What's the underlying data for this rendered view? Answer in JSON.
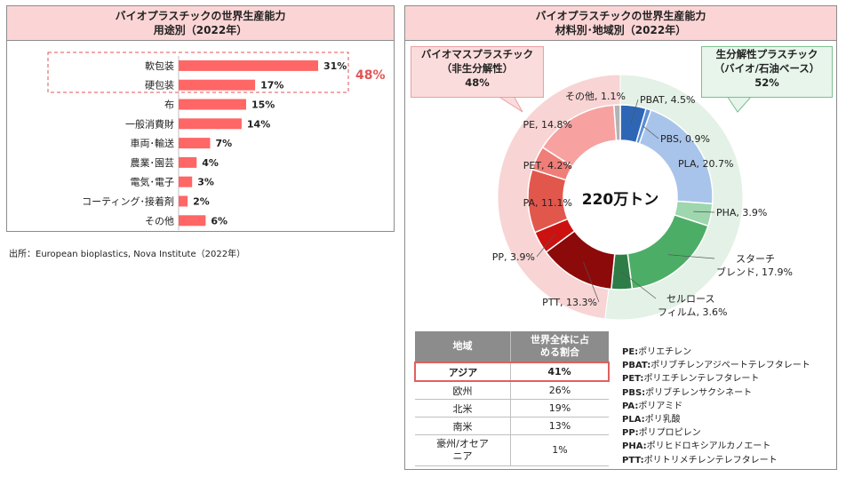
{
  "left_panel": {
    "title_line1": "バイオプラスチックの世界生産能力",
    "title_line2": "用途別（2022年）",
    "highlight_total": "48%"
  },
  "right_panel": {
    "title_line1": "バイオプラスチックの世界生産能力",
    "title_line2": "材料別･地域別（2022年）",
    "center_label": "220万トン"
  },
  "source": "出所：European bioplastics, Nova Institute（2022年）",
  "callouts": {
    "biomass": {
      "line1": "バイオマスプラスチック",
      "line2": "（非生分解性）",
      "value": "48%"
    },
    "biodegradable": {
      "line1": "生分解性プラスチック",
      "line2": "（バイオ/石油ベース）",
      "value": "52%"
    }
  },
  "colors": {
    "bar": "#ff6666",
    "highlight": "#e05555",
    "header_bg": "#fbd5d5",
    "biomass_outer": "#f8d4d4",
    "bio_outer": "#e3f1e6"
  },
  "chart_data": [
    {
      "type": "bar",
      "orientation": "horizontal",
      "title": "バイオプラスチックの世界生産能力 用途別（2022年）",
      "categories": [
        "軟包装",
        "硬包装",
        "布",
        "一般消費財",
        "車両･輸送",
        "農業･園芸",
        "電気･電子",
        "コーティング･接着剤",
        "その他"
      ],
      "values": [
        31,
        17,
        15,
        14,
        7,
        4,
        3,
        2,
        6
      ],
      "value_labels": [
        "31%",
        "17%",
        "15%",
        "14%",
        "7%",
        "4%",
        "3%",
        "2%",
        "6%"
      ],
      "bar_color": "#ff6666",
      "xlim": [
        0,
        33
      ]
    },
    {
      "type": "pie",
      "subtype": "donut",
      "title": "バイオプラスチックの世界生産能力 材料別･地域別（2022年）",
      "center_label": "220万トン",
      "slices": [
        {
          "name": "PBAT",
          "label": "PBAT, 4.5%",
          "value": 4.5,
          "color": "#2e66b6",
          "group": "biodegradable"
        },
        {
          "name": "PBS",
          "label": "PBS, 0.9%",
          "value": 0.9,
          "color": "#5b8fd6",
          "group": "biodegradable"
        },
        {
          "name": "PLA",
          "label": "PLA, 20.7%",
          "value": 20.7,
          "color": "#a9c4ea",
          "group": "biodegradable"
        },
        {
          "name": "PHA",
          "label": "PHA, 3.9%",
          "value": 3.9,
          "color": "#9ed6ad",
          "group": "biodegradable"
        },
        {
          "name": "スターチブレンド",
          "label": "スターチブレンド, 17.9%",
          "value": 17.9,
          "color": "#4cae66",
          "group": "biodegradable"
        },
        {
          "name": "セルロースフィルム",
          "label": "セルロースフィルム, 3.6%",
          "value": 3.6,
          "color": "#2e7d46",
          "group": "biodegradable"
        },
        {
          "name": "PTT",
          "label": "PTT, 13.3%",
          "value": 13.3,
          "color": "#8c0a0a",
          "group": "biomass"
        },
        {
          "name": "PP",
          "label": "PP, 3.9%",
          "value": 3.9,
          "color": "#cc1111",
          "group": "biomass"
        },
        {
          "name": "PA",
          "label": "PA, 11.1%",
          "value": 11.1,
          "color": "#e2574c",
          "group": "biomass"
        },
        {
          "name": "PET",
          "label": "PET, 4.2%",
          "value": 4.2,
          "color": "#f07e78",
          "group": "biomass"
        },
        {
          "name": "PE",
          "label": "PE, 14.8%",
          "value": 14.8,
          "color": "#f7a1a1",
          "group": "biomass"
        },
        {
          "name": "その他",
          "label": "その他, 1.1%",
          "value": 1.1,
          "color": "#b3b3b3",
          "group": "biomass"
        }
      ],
      "outer_ring": [
        {
          "name": "生分解性プラスチック",
          "value": 52,
          "color": "#e3f1e6"
        },
        {
          "name": "バイオマスプラスチック",
          "value": 48,
          "color": "#f8d4d4"
        }
      ]
    },
    {
      "type": "table",
      "columns": [
        "地域",
        "世界全体に占める割合"
      ],
      "rows": [
        [
          "アジア",
          "41%"
        ],
        [
          "欧州",
          "26%"
        ],
        [
          "北米",
          "19%"
        ],
        [
          "南米",
          "13%"
        ],
        [
          "豪州/オセアニア",
          "1%"
        ]
      ],
      "highlighted_row": 0
    }
  ],
  "abbreviations": [
    {
      "abbr": "PE",
      "desc": "ポリエチレン"
    },
    {
      "abbr": "PBAT",
      "desc": "ポリブチレンアジペートテレフタレート"
    },
    {
      "abbr": "PET",
      "desc": "ポリエチレンテレフタレート"
    },
    {
      "abbr": "PBS",
      "desc": "ポリブチレンサクシネート"
    },
    {
      "abbr": "PA",
      "desc": "ポリアミド"
    },
    {
      "abbr": "PLA",
      "desc": "ポリ乳酸"
    },
    {
      "abbr": "PP",
      "desc": "ポリプロピレン"
    },
    {
      "abbr": "PHA",
      "desc": "ポリヒドロキシアルカノエート"
    },
    {
      "abbr": "PTT",
      "desc": "ポリトリメチレンテレフタレート"
    }
  ]
}
